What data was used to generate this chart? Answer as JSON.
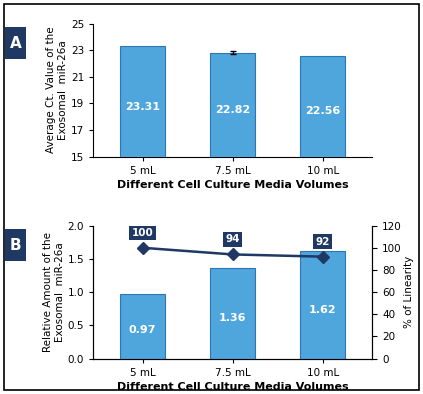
{
  "categories": [
    "5 mL",
    "7.5 mL",
    "10 mL"
  ],
  "panel_a": {
    "values": [
      23.31,
      22.82,
      22.56
    ],
    "errors": [
      0.0,
      0.12,
      0.0
    ],
    "ylabel": "Average Ct. Value of the\nExosomal  miR-26a",
    "xlabel": "Different Cell Culture Media Volumes",
    "ylim": [
      15,
      25
    ],
    "yticks": [
      15,
      17,
      19,
      21,
      23,
      25
    ],
    "bar_color": "#4EA6DC",
    "bar_edge_color": "#2E75B6",
    "label_color": "#FFFFFF",
    "label_fontsize": 8,
    "label": "A"
  },
  "panel_b": {
    "values": [
      0.97,
      1.36,
      1.62
    ],
    "linearity": [
      100,
      94,
      92
    ],
    "ylabel_left": "Relative Amount of the\nExosomal  miR-26a",
    "ylabel_right": "% of Linearity",
    "xlabel": "Different Cell Culture Media Volumes",
    "ylim_left": [
      0.0,
      2.0
    ],
    "ylim_right": [
      0,
      120
    ],
    "yticks_left": [
      0.0,
      0.5,
      1.0,
      1.5,
      2.0
    ],
    "yticks_right": [
      0,
      20,
      40,
      60,
      80,
      100,
      120
    ],
    "bar_color": "#4EA6DC",
    "bar_edge_color": "#2E75B6",
    "line_color": "#1F3864",
    "marker_color": "#1F3864",
    "label_color": "#FFFFFF",
    "label_fontsize": 8,
    "annot_bg_color": "#1F3864",
    "annot_text_color": "#FFFFFF",
    "label": "B"
  },
  "panel_label_bg": "#1F3864",
  "panel_label_fg": "#FFFFFF",
  "bar_width": 0.5,
  "x_positions": [
    0,
    1,
    2
  ],
  "xlabel_fontsize": 8,
  "ylabel_fontsize": 7.5,
  "tick_fontsize": 7.5,
  "figure_bg": "#FFFFFF"
}
